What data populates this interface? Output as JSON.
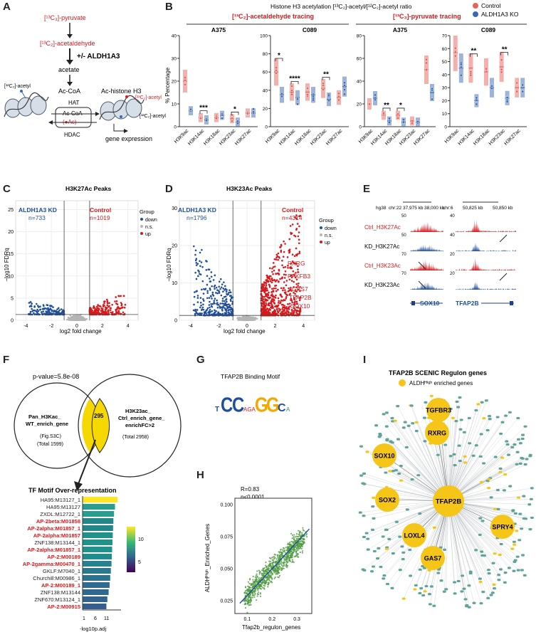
{
  "panel_labels": [
    "A",
    "B",
    "C",
    "D",
    "E",
    "F",
    "G",
    "H",
    "I"
  ],
  "panelA": {
    "pyruvate": "[¹³C₃]-pyruvate",
    "acetaldehyde": "[¹³C₂]-acetaldehyde",
    "aldh": "+/- ALDH1A3",
    "acetate": "acetate",
    "acetyl12_left": "[¹²C₂]-acetyl",
    "acetyl13_right": "[¹³C₂]-acetyl",
    "acetyl12_right": "[¹²C₂]-acetyl",
    "accoa": "Ac-CoA",
    "ac_histone": "Ac-histone H3",
    "hat": "HAT",
    "accoa_box": "Ac-CoA",
    "ac_circle": "(●Ac)",
    "hdac": "HDAC",
    "gene_expression": "gene expression"
  },
  "panelB": {
    "title": "Histone H3 acetylation [¹³C₂]-acetyl/[¹²C₂]-acetyl ratio",
    "left_heading": "[¹³C₂]-acetaldehyde tracing",
    "right_heading": "[¹³C₃]-pyruvate tracing",
    "ylabel": "% Percentage",
    "legend": [
      "Control",
      "ALDH1A3 KO"
    ]
  },
  "chart_data": [
    {
      "type": "box",
      "panel": "B",
      "subplot": "A375",
      "tracing": "acetaldehyde",
      "categories": [
        "H3K9ac",
        "H3K14ac",
        "H3K18ac",
        "H3K23ac",
        "H3K27ac"
      ],
      "series": [
        {
          "name": "Control",
          "values": [
            20,
            4,
            4,
            3.5,
            6
          ]
        },
        {
          "name": "ALDH1A3 KO",
          "values": [
            7,
            3,
            5,
            2,
            6
          ]
        }
      ],
      "significance": [
        "",
        "***",
        "",
        "*",
        ""
      ],
      "ylim": [
        0,
        40
      ],
      "yticks": [
        0,
        10,
        20,
        30,
        40
      ],
      "ylabel": "% Percentage"
    },
    {
      "type": "box",
      "panel": "B",
      "subplot": "C089",
      "tracing": "acetaldehyde",
      "categories": [
        "H3K9ac",
        "H3K14ac",
        "H3K18ac",
        "H3K23ac",
        "H3K27ac"
      ],
      "series": [
        {
          "name": "Control",
          "values": [
            60,
            38,
            38,
            42,
            32
          ]
        },
        {
          "name": "ALDH1A3 KO",
          "values": [
            35,
            32,
            35,
            30,
            44
          ]
        }
      ],
      "significance": [
        "*",
        "****",
        "",
        "**",
        ""
      ],
      "ylim": [
        0,
        100
      ],
      "yticks": [
        0,
        20,
        40,
        60,
        80,
        100
      ]
    },
    {
      "type": "box",
      "panel": "B",
      "subplot": "A375",
      "tracing": "pyruvate",
      "categories": [
        "H3K9ac",
        "H3K14ac",
        "H3K18ac",
        "H3K23ac",
        "H3K27ac"
      ],
      "series": [
        {
          "name": "Control",
          "values": [
            20,
            10,
            10,
            5,
            50
          ]
        },
        {
          "name": "ALDH1A3 KO",
          "values": [
            25,
            5,
            4,
            4,
            30
          ]
        }
      ],
      "significance": [
        "",
        "**",
        "*",
        "",
        ""
      ],
      "ylim": [
        0,
        80
      ],
      "yticks": [
        0,
        20,
        40,
        60,
        80
      ]
    },
    {
      "type": "box",
      "panel": "B",
      "subplot": "C089",
      "tracing": "pyruvate",
      "categories": [
        "H3K9ac",
        "H3K14ac",
        "H3K18ac",
        "H3K23ac",
        "H3K27ac"
      ],
      "series": [
        {
          "name": "Control",
          "values": [
            57,
            45,
            42,
            46,
            30
          ]
        },
        {
          "name": "ALDH1A3 KO",
          "values": [
            45,
            20,
            30,
            22,
            30
          ]
        }
      ],
      "significance": [
        "",
        "**",
        "",
        "**",
        ""
      ],
      "ylim": [
        0,
        70
      ],
      "yticks": [
        0,
        10,
        20,
        30,
        40,
        50,
        60,
        70
      ]
    },
    {
      "type": "scatter",
      "panel": "C",
      "title": "H3K27Ac Peaks",
      "xlabel": "log2 fold change",
      "ylabel": "−log10 FDRq",
      "xticks": [
        -4,
        -2,
        0,
        2,
        4
      ],
      "yticks": [
        0,
        5,
        10,
        15,
        20,
        25
      ],
      "ylim": [
        0,
        27
      ],
      "groups": [
        {
          "name": "ALDH1A3 KD",
          "label": "n=733",
          "count": 733
        },
        {
          "name": "Control",
          "label": "n=1019",
          "count": 1019
        }
      ]
    },
    {
      "type": "scatter",
      "panel": "D",
      "title": "H3K23Ac Peaks",
      "xlabel": "log2 fold change",
      "ylabel": "−log10 FDRq",
      "xticks": [
        -4,
        -2,
        0,
        2,
        4
      ],
      "yticks": [
        0,
        10,
        20,
        30
      ],
      "ylim": [
        0,
        32
      ],
      "groups": [
        {
          "name": "ALDH1A3 KD",
          "label": "n=1796",
          "count": 1796
        },
        {
          "name": "Control",
          "label": "n=4314",
          "count": 4314
        }
      ],
      "annotated_genes": [
        "RXRG",
        "PFKFB3",
        "GAS7",
        "TFAP2B",
        "SOX10"
      ]
    },
    {
      "type": "bar",
      "panel": "F",
      "title": "TF Motif Over-representation",
      "orientation": "horizontal",
      "xlabel": "-log10 p.adj",
      "xticks": [
        1,
        6,
        11
      ],
      "categories": [
        "HA95:M13127_1",
        "HA95:M13127",
        "ZXDL:M12722_1",
        "AP-2beta:M01858",
        "AP-2alpha:M01857_1",
        "AP-2alpha:M01857",
        "ZNF138:M13144_1",
        "AP-2alpha:M01857_1",
        "AP-2:M00189",
        "AP-2gamma:M00470_1",
        "GKLF:M7040_1",
        "Churchill:M00986_1",
        "AP-2:M00189_1",
        "ZNF138:M13144",
        "ZNF670:M13124_1",
        "AP-2:M00915"
      ],
      "values": [
        12,
        11.2,
        10.9,
        10.7,
        10.6,
        10.5,
        10.4,
        10.3,
        10.2,
        10.1,
        9.9,
        9.7,
        9.5,
        9.2,
        8.8,
        8.5
      ],
      "highlight": [
        false,
        false,
        false,
        true,
        true,
        true,
        false,
        true,
        true,
        true,
        false,
        false,
        true,
        false,
        false,
        true
      ],
      "colorbar_ticks": [
        5,
        10
      ]
    },
    {
      "type": "scatter",
      "panel": "H",
      "xlabel": "Tfap2b_regulon_genes",
      "ylabel": "ALDHᴴⁱᵍʰ_Enriched_Genes",
      "xticks": [
        0.1,
        0.2,
        0.3
      ],
      "yticks": [
        0.025,
        0.05,
        0.075,
        0.1
      ],
      "xlim": [
        0.05,
        0.36
      ],
      "ylim": [
        0.015,
        0.105
      ],
      "fit": {
        "r": 0.83,
        "p": "<0.0001"
      }
    }
  ],
  "panelC": {
    "title": "H3K27Ac Peaks",
    "left_group": "ALDH1A3 KD",
    "left_n": "n=733",
    "right_group": "Control",
    "right_n": "n=1019",
    "legend_title": "Group",
    "legend_items": [
      "down",
      "n.s.",
      "up"
    ],
    "xlabel": "log2 fold change",
    "ylabel": "−log10 FDRq",
    "xticks": [
      "-4",
      "-2",
      "0",
      "2",
      "4"
    ],
    "yticks": [
      "0",
      "5",
      "10",
      "15",
      "20",
      "25"
    ]
  },
  "panelD": {
    "title": "H3K23Ac Peaks",
    "left_group": "ALDH1A3 KD",
    "left_n": "n=1796",
    "right_group": "Control",
    "right_n": "n=4314",
    "legend_title": "Group",
    "legend_items": [
      "down",
      "n.s.",
      "up"
    ],
    "genes": [
      "RXRG",
      "PFKFB3",
      "GAS7",
      "TFAP2B",
      "SOX10"
    ],
    "xlabel": "log2 fold change",
    "ylabel": "−log10 FDRq",
    "xticks": [
      "-4",
      "-2",
      "0",
      "2",
      "4"
    ],
    "yticks": [
      "0",
      "10",
      "20",
      "30"
    ]
  },
  "panelE": {
    "genome": "hg38",
    "chr_left": "chr:22",
    "chr_right": "chr:6",
    "kb_left": [
      "37,975 kb",
      "38,000 kb"
    ],
    "kb_right": [
      "50,825 kb",
      "50,850 kb"
    ],
    "tracks": [
      "Ctrl_H3K27Ac",
      "KD_H3K27Ac",
      "Ctrl_H3K23Ac",
      "KD_H3K23Ac"
    ],
    "scales": [
      "50",
      "50",
      "70",
      "70"
    ],
    "scales_right": [
      "40",
      "40",
      "20",
      "20"
    ],
    "gene_left": "SOX10",
    "gene_right": "TFAP2B"
  },
  "panelF": {
    "pvalue": "p-value=5.8e-08",
    "left_circle": [
      "Pan_H3Kac_",
      "WT_enrich_gene"
    ],
    "left_ref": "(Fig.S3C)",
    "left_total": "(Total 1599)",
    "overlap": "295",
    "right_circle": [
      "H3K23ac_",
      "Ctrl_enrich_gene_",
      "enrichFC>2"
    ],
    "right_total": "(Total 2958)",
    "bar_title": "TF Motif Over-representation",
    "xlabel": "-log10p.adj",
    "xticks": [
      "1",
      "6",
      "11"
    ],
    "colorbar_ticks": [
      "10",
      "5"
    ]
  },
  "panelG": {
    "title": "TFAP2B Binding Motif"
  },
  "panelH": {
    "r": "R=0.83",
    "p": "p<0.0001",
    "xlabel": "Tfap2b_regulon_genes",
    "ylabel": "ALDHᴴⁱᵍʰ_Enriched_Genes",
    "xticks": [
      "0.1",
      "0.2",
      "0.3"
    ],
    "yticks": [
      "0.025",
      "0.050",
      "0.075",
      "0.100"
    ]
  },
  "panelI": {
    "title": "TFAP2B SCENIC Regulon genes",
    "legend": "ALDHᴴⁱᵍʰ enriched genes",
    "hub": "TFAP2B",
    "genes": [
      "TGFBR3",
      "RXRG",
      "SOX10",
      "SOX2",
      "LOXL4",
      "GAS7",
      "SPRY4"
    ]
  },
  "colors": {
    "control": "#e8625a",
    "ko": "#3b68b5",
    "up": "#d7191c",
    "down": "#1f4e9c",
    "ns": "#b5b5b5",
    "node": "#5fa39a",
    "gold": "#f5c518"
  }
}
